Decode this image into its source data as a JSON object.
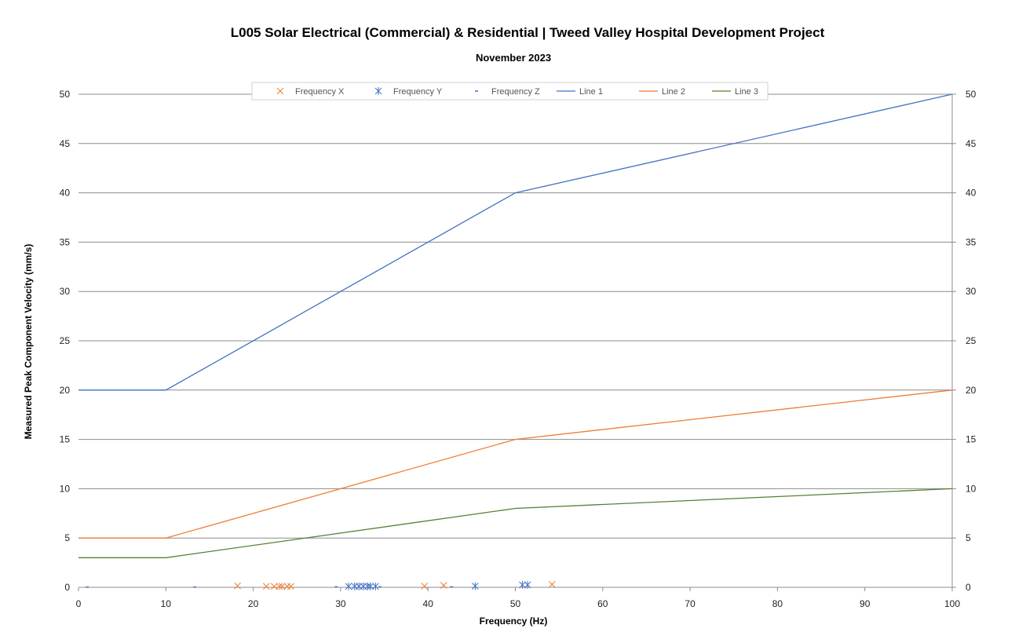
{
  "chart_data": {
    "type": "scatter",
    "title": "L005 Solar Electrical (Commercial) & Residential | Tweed Valley Hospital Development Project",
    "subtitle": "November 2023",
    "xlabel": "Frequency (Hz)",
    "ylabel": "Measured Peak Component Velocity (mm/s)",
    "xlim": [
      0,
      100
    ],
    "ylim": [
      0,
      50
    ],
    "x_ticks": [
      0,
      10,
      20,
      30,
      40,
      50,
      60,
      70,
      80,
      90,
      100
    ],
    "y_ticks": [
      0,
      5,
      10,
      15,
      20,
      25,
      30,
      35,
      40,
      45,
      50
    ],
    "y2_ticks": [
      0,
      5,
      10,
      15,
      20,
      25,
      30,
      35,
      40,
      45,
      50
    ],
    "grid": "horizontal",
    "legend_position": "top",
    "series": [
      {
        "name": "Frequency X",
        "kind": "scatter",
        "marker": "x",
        "color": "#ed7d31",
        "points": [
          [
            18.2,
            0.15
          ],
          [
            21.5,
            0.1
          ],
          [
            22.4,
            0.1
          ],
          [
            23.0,
            0.1
          ],
          [
            23.3,
            0.1
          ],
          [
            23.9,
            0.1
          ],
          [
            24.3,
            0.1
          ],
          [
            39.6,
            0.12
          ],
          [
            41.8,
            0.2
          ],
          [
            54.2,
            0.3
          ]
        ]
      },
      {
        "name": "Frequency Y",
        "kind": "scatter",
        "marker": "asterisk",
        "color": "#4472c4",
        "points": [
          [
            30.9,
            0.1
          ],
          [
            31.6,
            0.1
          ],
          [
            32.1,
            0.1
          ],
          [
            32.6,
            0.1
          ],
          [
            33.1,
            0.1
          ],
          [
            33.4,
            0.1
          ],
          [
            34.0,
            0.1
          ],
          [
            45.4,
            0.12
          ],
          [
            50.8,
            0.25
          ],
          [
            51.4,
            0.25
          ]
        ]
      },
      {
        "name": "Frequency Z",
        "kind": "scatter",
        "marker": "dash",
        "color": "#4472c4",
        "points": [
          [
            1.0,
            0.03
          ],
          [
            13.3,
            0.03
          ],
          [
            29.5,
            0.05
          ],
          [
            34.5,
            0.05
          ],
          [
            42.7,
            0.05
          ]
        ]
      },
      {
        "name": "Line 1",
        "kind": "line",
        "color": "#4472c4",
        "points": [
          [
            0,
            20
          ],
          [
            10,
            20
          ],
          [
            50,
            40
          ],
          [
            100,
            50
          ]
        ]
      },
      {
        "name": "Line 2",
        "kind": "line",
        "color": "#ed7d31",
        "points": [
          [
            0,
            5
          ],
          [
            10,
            5
          ],
          [
            50,
            15
          ],
          [
            100,
            20
          ]
        ]
      },
      {
        "name": "Line 3",
        "kind": "line",
        "color": "#548235",
        "points": [
          [
            0,
            3
          ],
          [
            10,
            3
          ],
          [
            50,
            8
          ],
          [
            100,
            10
          ]
        ]
      }
    ]
  }
}
